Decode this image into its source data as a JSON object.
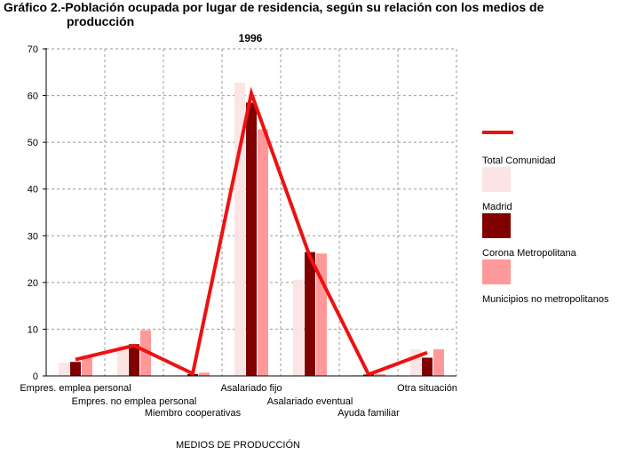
{
  "chart_data": {
    "type": "bar",
    "title_line1": "Gráfico 2.-Población ocupada por lugar de residencia, según su relación con los medios de",
    "title_line2": "producción",
    "subtitle": "1996",
    "xlabel": "MEDIOS DE PRODUCCIÓN",
    "ylabel": "",
    "ylim": [
      0,
      70
    ],
    "yticks": [
      0,
      10,
      20,
      30,
      40,
      50,
      60,
      70
    ],
    "grid": true,
    "legend_position": "right",
    "categories": [
      "Empres. emplea personal",
      "Empres. no emplea personal",
      "Miembro cooperativas",
      "Asalariado fijo",
      "Asalariado eventual",
      "Ayuda familiar",
      "Otra situación"
    ],
    "line_series": {
      "name": "Total Comunidad",
      "color": "#ee1111",
      "values": [
        3.5,
        6.5,
        0.5,
        60.5,
        25.5,
        0.3,
        5.0
      ]
    },
    "series": [
      {
        "name": "Madrid",
        "color": "#fde4e4",
        "values": [
          2.8,
          6.6,
          0.2,
          62.8,
          20.6,
          0.2,
          5.7
        ]
      },
      {
        "name": "Corona Metropolitana",
        "color": "#800000",
        "values": [
          3.0,
          6.8,
          0.4,
          58.5,
          26.5,
          0.3,
          3.9
        ]
      },
      {
        "name": "Municipios no metropolitanos",
        "color": "#ff9999",
        "values": [
          4.0,
          9.8,
          0.7,
          52.8,
          26.2,
          0.4,
          5.7
        ]
      }
    ]
  }
}
